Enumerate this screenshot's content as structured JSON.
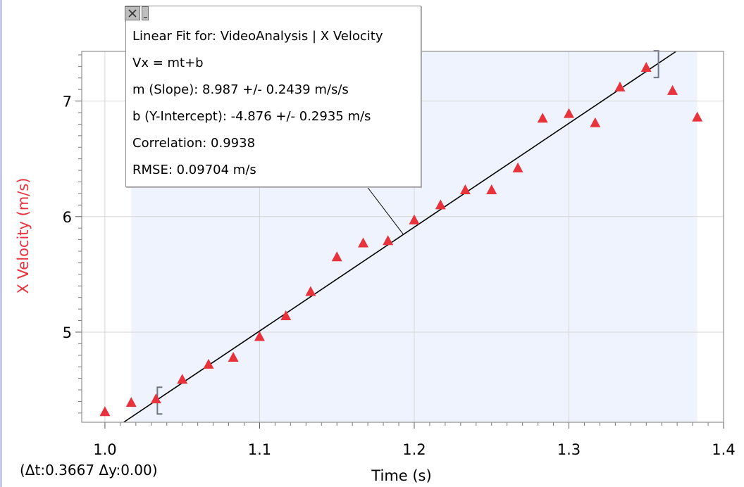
{
  "chart_data": {
    "type": "scatter",
    "xlabel": "Time (s)",
    "ylabel": "X Velocity (m/s)",
    "xlim": [
      0.985,
      1.4
    ],
    "ylim": [
      4.22,
      7.43
    ],
    "x_ticks": [
      "1.0",
      "1.1",
      "1.2",
      "1.3",
      "1.4"
    ],
    "y_ticks": [
      "5",
      "6",
      "7"
    ],
    "grid": true,
    "selection_range": [
      1.017,
      1.383
    ],
    "series": [
      {
        "marker": "triangle",
        "color": "#e8323c",
        "points": [
          [
            1.0,
            4.31
          ],
          [
            1.017,
            4.39
          ],
          [
            1.033,
            4.42
          ],
          [
            1.05,
            4.59
          ],
          [
            1.067,
            4.72
          ],
          [
            1.083,
            4.78
          ],
          [
            1.1,
            4.96
          ],
          [
            1.117,
            5.14
          ],
          [
            1.133,
            5.35
          ],
          [
            1.15,
            5.65
          ],
          [
            1.167,
            5.77
          ],
          [
            1.183,
            5.79
          ],
          [
            1.2,
            5.97
          ],
          [
            1.217,
            6.1
          ],
          [
            1.233,
            6.23
          ],
          [
            1.25,
            6.23
          ],
          [
            1.267,
            6.42
          ],
          [
            1.283,
            6.85
          ],
          [
            1.3,
            6.89
          ],
          [
            1.317,
            6.81
          ],
          [
            1.333,
            7.12
          ],
          [
            1.35,
            7.29
          ],
          [
            1.367,
            7.09
          ],
          [
            1.383,
            6.86
          ]
        ]
      }
    ],
    "fit": {
      "slope": 8.987,
      "intercept": -4.876,
      "color": "#000000",
      "range_brackets": [
        1.033,
        1.357
      ]
    }
  },
  "fit_box": {
    "title": "Linear Fit for: VideoAnalysis | X Velocity",
    "equation": "Vx = mt+b",
    "slope": "m (Slope): 8.987 +/- 0.2439 m/s/s",
    "intercept": "b (Y-Intercept): -4.876 +/- 0.2935 m/s",
    "correlation": "Correlation: 0.9938",
    "rmse": "RMSE: 0.09704 m/s"
  },
  "readout": "(Δt:0.3667 Δy:0.00)",
  "colors": {
    "axis_label": "#e8323c",
    "selection": "#eef3fd",
    "grid": "#d6d6d6",
    "frame": "#909090"
  }
}
